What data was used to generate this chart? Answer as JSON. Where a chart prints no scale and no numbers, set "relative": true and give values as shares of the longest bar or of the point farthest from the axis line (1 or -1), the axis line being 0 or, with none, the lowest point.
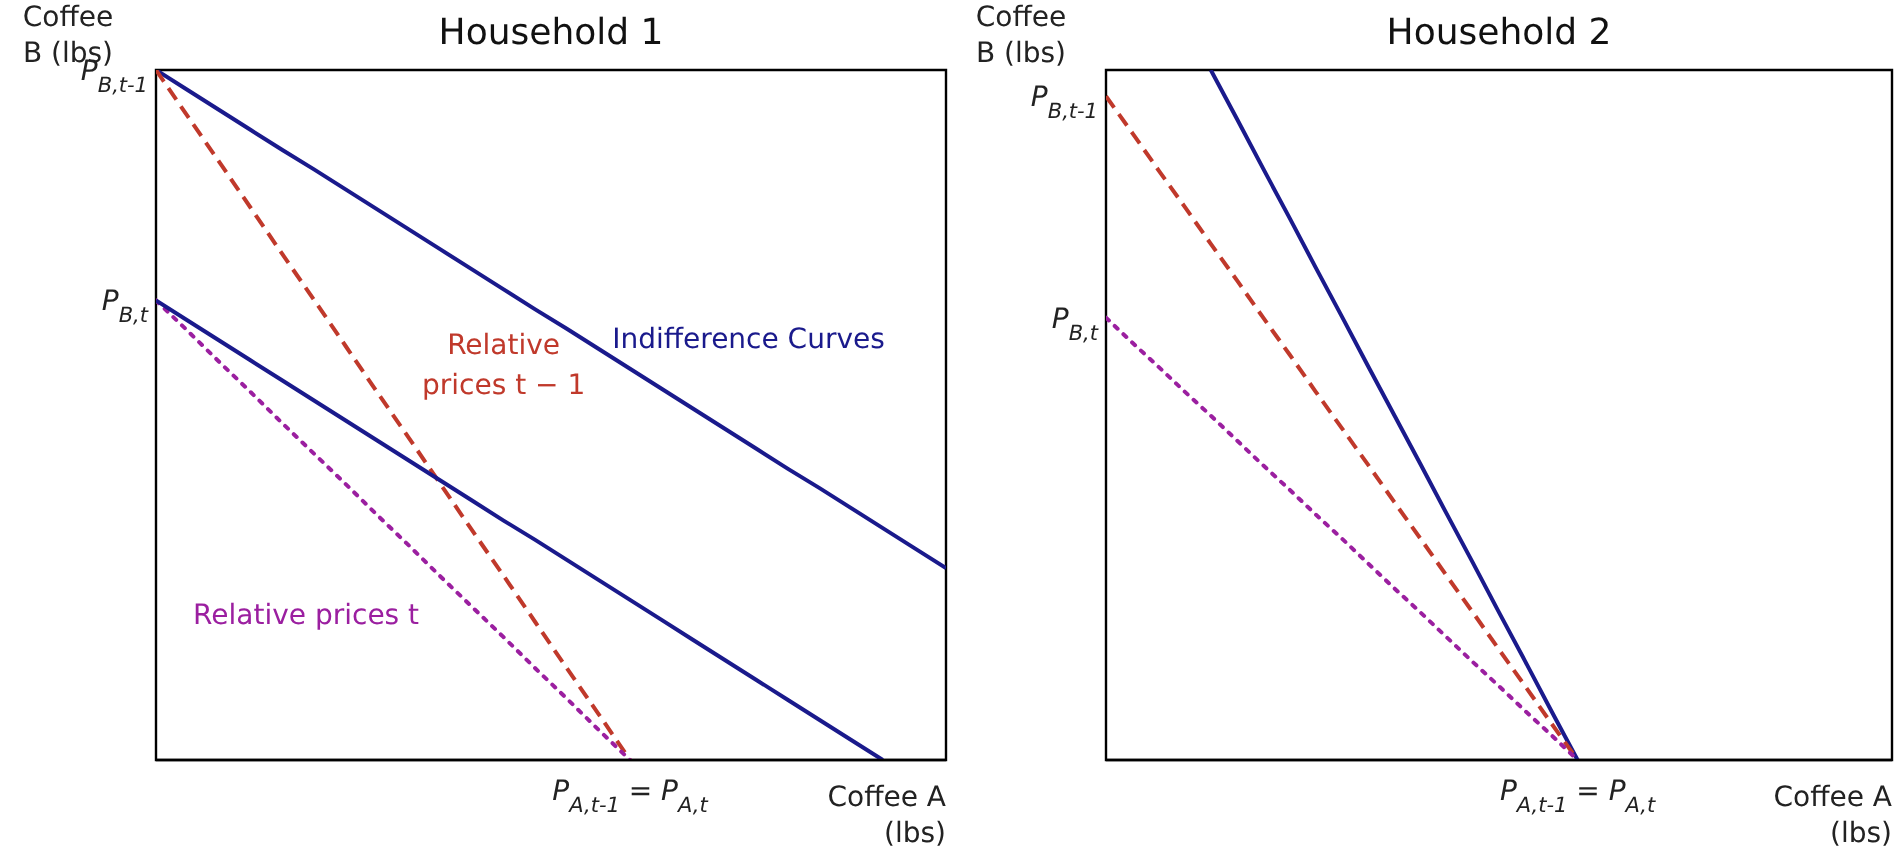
{
  "chart_data": [
    {
      "type": "line",
      "title": "Household 1",
      "xlabel": "Coffee A\n(lbs)",
      "ylabel": "Coffee\nB (lbs)",
      "relative": true,
      "categories": [
        null,
        null,
        null,
        null,
        null,
        null,
        null,
        null,
        null,
        null,
        null,
        null,
        null,
        null,
        null,
        null,
        null,
        null,
        null,
        null,
        null,
        null,
        null,
        null,
        null,
        null
      ],
      "marker": "none",
      "annotations": [
        "Indifference Curves",
        "Relative\nprices t − 1",
        "Relative prices t",
        "P$_{B,t-1}$",
        "P$_{B,t}$",
        "P$_{A,t-1}$ = P$_{A,t}$"
      ],
      "series": [
        {
          "color": "#1a1a8c",
          "line_style": "solid",
          "values": [
            1,
            0.971,
            0.942,
            0.913,
            0.884,
            0.856,
            0.827,
            0.798,
            0.769,
            0.74,
            0.711,
            0.682,
            0.653,
            0.625,
            0.596,
            0.567,
            0.538,
            0.509,
            0.48,
            0.451,
            0.422,
            0.394,
            0.365,
            0.336,
            0.307,
            0.278
          ]
        },
        {
          "color": "#c0392b",
          "line_style": "dashed",
          "values": [
            1,
            0.933,
            0.867,
            0.8,
            0.733,
            0.667,
            0.6,
            0.533,
            0.467,
            0.4,
            0.333,
            0.267,
            0.2,
            0.133,
            0.067,
            0,
            null,
            null,
            null,
            null,
            null,
            null,
            null,
            null,
            null,
            null
          ]
        },
        {
          "color": "#9b1fa0",
          "line_style": "dotted",
          "values": [
            0.666,
            0.622,
            0.577,
            0.533,
            0.488,
            0.444,
            0.4,
            0.355,
            0.311,
            0.266,
            0.222,
            0.178,
            0.133,
            0.089,
            0.044,
            0,
            null,
            null,
            null,
            null,
            null,
            null,
            null,
            null,
            null,
            null
          ]
        },
        {
          "color": "#1a1a8c",
          "line_style": "solid",
          "values": [
            0.666,
            0.637,
            0.608,
            0.579,
            0.55,
            0.521,
            0.492,
            0.463,
            0.434,
            0.405,
            0.376,
            0.347,
            0.319,
            0.29,
            0.261,
            0.232,
            0.203,
            0.174,
            0.145,
            0.116,
            0.087,
            0.058,
            0.029,
            0,
            null,
            null
          ]
        }
      ]
    },
    {
      "type": "line",
      "title": "Household 2",
      "xlabel": "Coffee A\n(lbs)",
      "ylabel": "Coffee\nB (lbs)",
      "relative": true,
      "categories": [
        null,
        null,
        null,
        null,
        null,
        null,
        null,
        null,
        null,
        null,
        null,
        null,
        null,
        null,
        null,
        null,
        null,
        null,
        null,
        null,
        null,
        null,
        null,
        null,
        null,
        null,
        null,
        null,
        null,
        null,
        null
      ],
      "marker": "none",
      "annotations": [
        "P$_{B,t-1}$",
        "P$_{B,t}$",
        "P$_{A,t-1}$ = P$_{A,t}$"
      ],
      "series": [
        {
          "color": "#1a1a8c",
          "line_style": "solid",
          "values": [
            null,
            null,
            null,
            null,
            1,
            0.929,
            0.857,
            0.786,
            0.714,
            0.643,
            0.571,
            0.5,
            0.429,
            0.357,
            0.286,
            0.214,
            0.143,
            0.071,
            0,
            null,
            null,
            null,
            null,
            null,
            null,
            null,
            null,
            null,
            null,
            null,
            null
          ]
        },
        {
          "color": "#c0392b",
          "line_style": "dashed",
          "values": [
            0.962,
            0.909,
            0.855,
            0.802,
            0.748,
            0.695,
            0.641,
            0.588,
            0.534,
            0.481,
            0.428,
            0.374,
            0.321,
            0.267,
            0.214,
            0.16,
            0.107,
            0.053,
            0,
            null,
            null,
            null,
            null,
            null,
            null,
            null,
            null,
            null,
            null,
            null,
            null
          ]
        },
        {
          "color": "#9b1fa0",
          "line_style": "dotted",
          "values": [
            0.641,
            0.605,
            0.57,
            0.534,
            0.499,
            0.463,
            0.427,
            0.392,
            0.356,
            0.321,
            0.285,
            0.249,
            0.214,
            0.178,
            0.142,
            0.107,
            0.071,
            0.036,
            0,
            null,
            null,
            null,
            null,
            null,
            null,
            null,
            null,
            null,
            null,
            null,
            null
          ]
        }
      ]
    }
  ]
}
